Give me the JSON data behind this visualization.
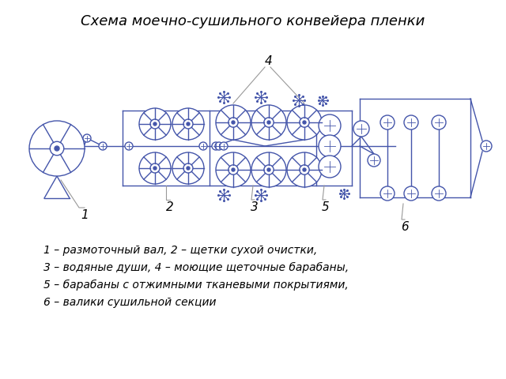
{
  "title": "Схема моечно-сушильного конвейера пленки",
  "line_color": "#4455aa",
  "gray_color": "#999999",
  "bg_color": "#ffffff",
  "legend_lines": [
    "1 – размоточный вал, 2 – щетки сухой очистки,",
    "3 – водяные души, 4 – моющие щеточные барабаны,",
    "5 – барабаны с отжимными тканевыми покрытиями,",
    "6 – валики сушильной секции"
  ]
}
